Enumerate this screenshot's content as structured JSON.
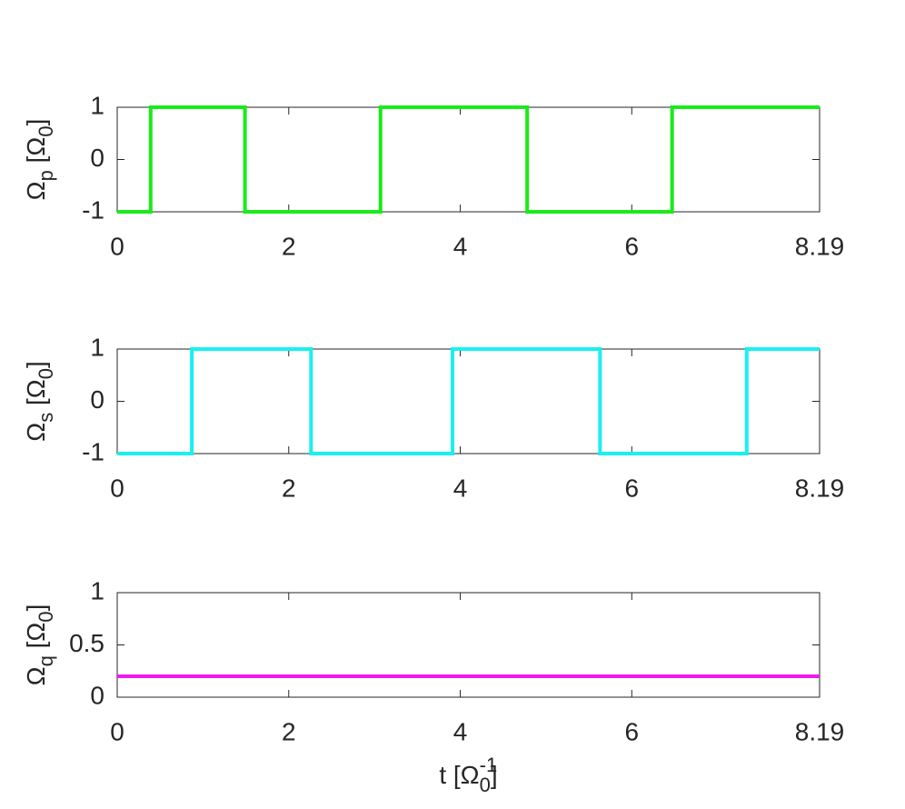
{
  "chart_data": [
    {
      "type": "line",
      "ylabel": [
        {
          "text": "Ω"
        },
        {
          "text": "p",
          "shift": "sub"
        },
        {
          "text": " [Ω"
        },
        {
          "text": "0",
          "shift": "sub"
        },
        {
          "text": "]"
        }
      ],
      "x": [
        0,
        0.39,
        0.39,
        1.49,
        1.49,
        3.07,
        3.07,
        4.78,
        4.78,
        6.47,
        6.47,
        8.19
      ],
      "series": [
        {
          "color": "#19eb19",
          "values": [
            -1,
            -1,
            1,
            1,
            -1,
            -1,
            1,
            1,
            -1,
            -1,
            1,
            1
          ]
        }
      ],
      "xlim": [
        0,
        8.19
      ],
      "xticks": [
        0,
        2,
        4,
        6,
        8.19
      ],
      "ylim": [
        -1,
        1
      ],
      "yticks": [
        -1,
        0,
        1
      ]
    },
    {
      "type": "line",
      "ylabel": [
        {
          "text": "Ω"
        },
        {
          "text": "s",
          "shift": "sub"
        },
        {
          "text": " [Ω"
        },
        {
          "text": "0",
          "shift": "sub"
        },
        {
          "text": "]"
        }
      ],
      "x": [
        0,
        0.87,
        0.87,
        2.26,
        2.26,
        3.91,
        3.91,
        5.63,
        5.63,
        7.34,
        7.34,
        8.19
      ],
      "series": [
        {
          "color": "#19f0f0",
          "values": [
            -1,
            -1,
            1,
            1,
            -1,
            -1,
            1,
            1,
            -1,
            -1,
            1,
            1
          ]
        }
      ],
      "xlim": [
        0,
        8.19
      ],
      "xticks": [
        0,
        2,
        4,
        6,
        8.19
      ],
      "ylim": [
        -1,
        1
      ],
      "yticks": [
        -1,
        0,
        1
      ]
    },
    {
      "type": "line",
      "ylabel": [
        {
          "text": "Ω"
        },
        {
          "text": "q",
          "shift": "sub"
        },
        {
          "text": " [Ω"
        },
        {
          "text": "0",
          "shift": "sub"
        },
        {
          "text": "]"
        }
      ],
      "xlabel": [
        {
          "text": "t [Ω"
        },
        {
          "text": "-1",
          "shift": "super"
        },
        {
          "text": "0",
          "shift": "sub"
        },
        {
          "text": "]"
        }
      ],
      "x": [
        0,
        8.19
      ],
      "series": [
        {
          "color": "#f019f0",
          "values": [
            0.2,
            0.2
          ]
        }
      ],
      "xlim": [
        0,
        8.19
      ],
      "xticks": [
        0,
        2,
        4,
        6,
        8.19
      ],
      "ylim": [
        0,
        1
      ],
      "yticks": [
        0,
        0.5,
        1
      ]
    }
  ]
}
